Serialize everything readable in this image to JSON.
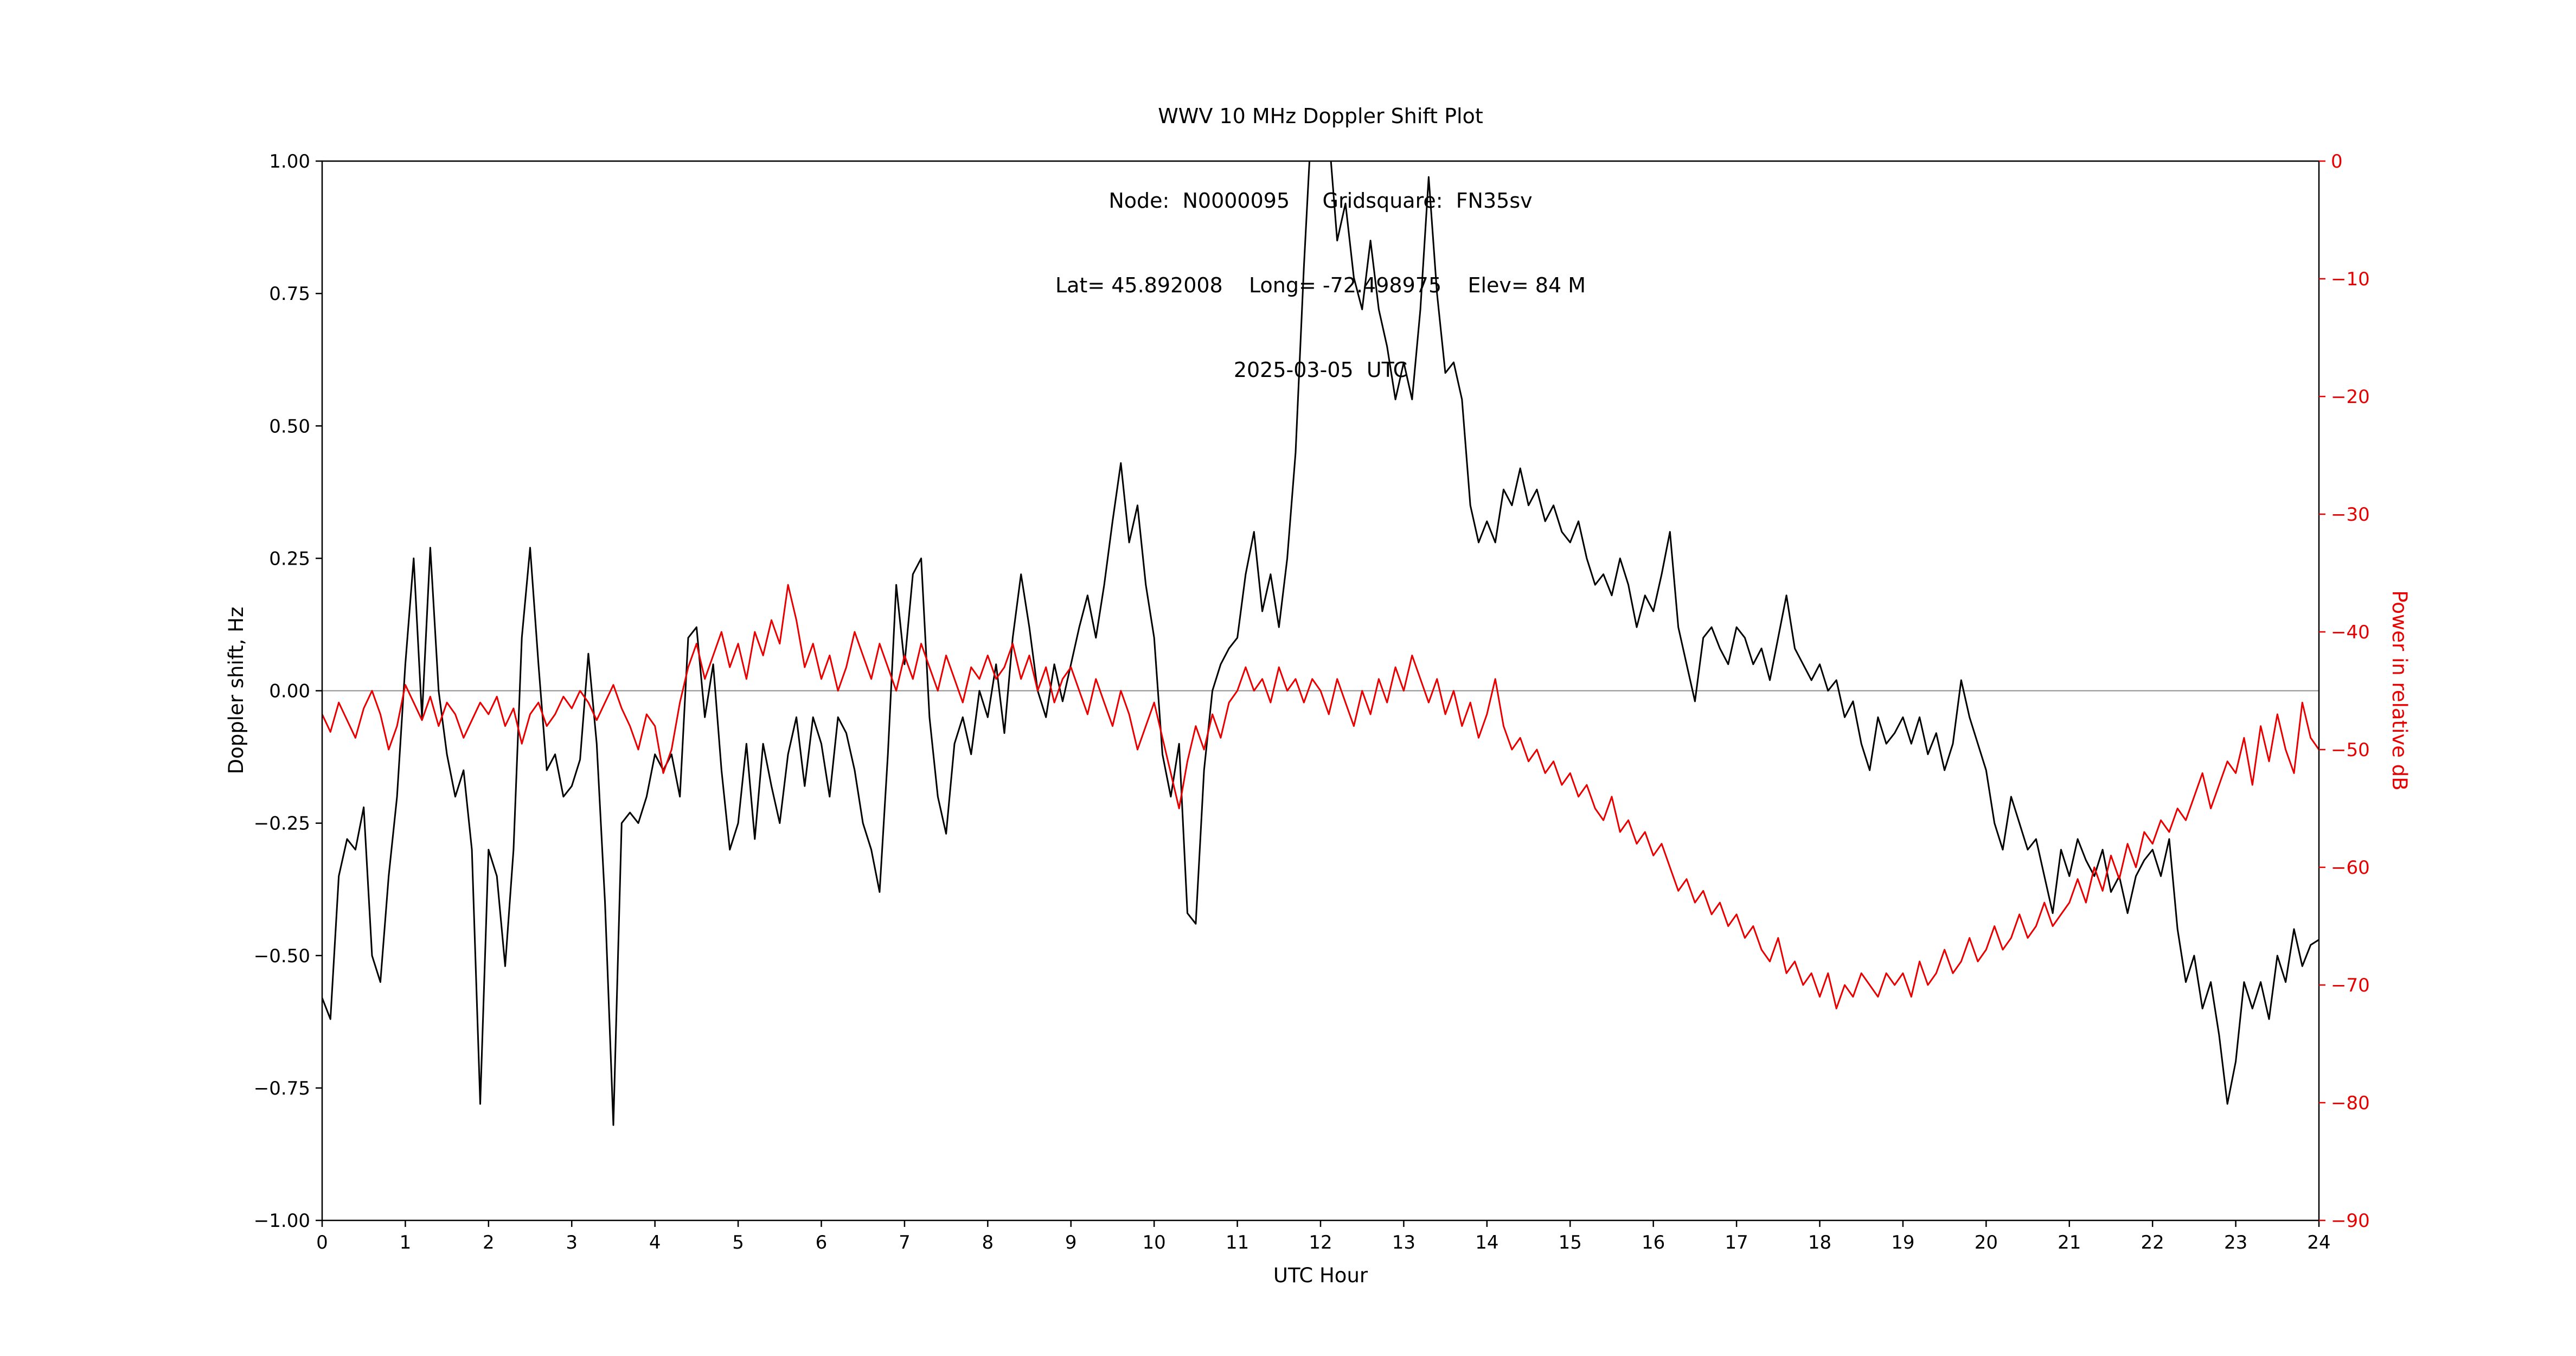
{
  "title": {
    "line1": "WWV 10 MHz Doppler Shift Plot",
    "line2": "Node:  N0000095     Gridsquare:  FN35sv",
    "line3": "Lat= 45.892008    Long= -72.498975    Elev= 84 M",
    "line4": "2025-03-05  UTC"
  },
  "chart_data": {
    "type": "line",
    "title": "WWV 10 MHz Doppler Shift Plot",
    "subtitle": "Node: N0000095  Gridsquare: FN35sv  Lat= 45.892008  Long= -72.498975  Elev= 84 M  2025-03-05 UTC",
    "xlabel": "UTC Hour",
    "ylabel_left": "Doppler shift, Hz",
    "ylabel_right": "Power in relative dB",
    "xlim": [
      0,
      24
    ],
    "ylim_left": [
      -1.0,
      1.0
    ],
    "ylim_right": [
      -90,
      0
    ],
    "grid": false,
    "legend": "none",
    "zero_reference_line_y": 0.0,
    "xticks": {
      "values": [
        0,
        1,
        2,
        3,
        4,
        5,
        6,
        7,
        8,
        9,
        10,
        11,
        12,
        13,
        14,
        15,
        16,
        17,
        18,
        19,
        20,
        21,
        22,
        23,
        24
      ],
      "labels": [
        "0",
        "1",
        "2",
        "3",
        "4",
        "5",
        "6",
        "7",
        "8",
        "9",
        "10",
        "11",
        "12",
        "13",
        "14",
        "15",
        "16",
        "17",
        "18",
        "19",
        "20",
        "21",
        "22",
        "23",
        "24"
      ]
    },
    "yticks_left": {
      "values": [
        1.0,
        0.75,
        0.5,
        0.25,
        0.0,
        -0.25,
        -0.5,
        -0.75,
        -1.0
      ],
      "labels": [
        "1.00",
        "0.75",
        "0.50",
        "0.25",
        "0.00",
        "−0.25",
        "−0.50",
        "−0.75",
        "−1.00"
      ]
    },
    "yticks_right": {
      "values": [
        0,
        -10,
        -20,
        -30,
        -40,
        -50,
        -60,
        -70,
        -80,
        -90
      ],
      "labels": [
        "0",
        "−10",
        "−20",
        "−30",
        "−40",
        "−50",
        "−60",
        "−70",
        "−80",
        "−90"
      ]
    },
    "colors": {
      "doppler_line": "#000000",
      "power_line": "#e80000",
      "zero_line": "#8c8c8c",
      "frame": "#000000",
      "right_axis_text": "#e80000"
    },
    "x_step_hours": 0.1,
    "series": [
      {
        "name": "doppler_shift_hz",
        "axis": "left",
        "color": "#000000",
        "values": [
          -0.58,
          -0.62,
          -0.35,
          -0.28,
          -0.3,
          -0.22,
          -0.5,
          -0.55,
          -0.35,
          -0.2,
          0.05,
          0.25,
          -0.05,
          0.27,
          0.0,
          -0.12,
          -0.2,
          -0.15,
          -0.3,
          -0.78,
          -0.3,
          -0.35,
          -0.52,
          -0.3,
          0.1,
          0.27,
          0.05,
          -0.15,
          -0.12,
          -0.2,
          -0.18,
          -0.13,
          0.07,
          -0.1,
          -0.4,
          -0.82,
          -0.25,
          -0.23,
          -0.25,
          -0.2,
          -0.12,
          -0.15,
          -0.12,
          -0.2,
          0.1,
          0.12,
          -0.05,
          0.05,
          -0.15,
          -0.3,
          -0.25,
          -0.1,
          -0.28,
          -0.1,
          -0.18,
          -0.25,
          -0.12,
          -0.05,
          -0.18,
          -0.05,
          -0.1,
          -0.2,
          -0.05,
          -0.08,
          -0.15,
          -0.25,
          -0.3,
          -0.38,
          -0.12,
          0.2,
          0.05,
          0.22,
          0.25,
          -0.05,
          -0.2,
          -0.27,
          -0.1,
          -0.05,
          -0.12,
          0.0,
          -0.05,
          0.05,
          -0.08,
          0.1,
          0.22,
          0.12,
          0.0,
          -0.05,
          0.05,
          -0.02,
          0.05,
          0.12,
          0.18,
          0.1,
          0.2,
          0.32,
          0.43,
          0.28,
          0.35,
          0.2,
          0.1,
          -0.12,
          -0.2,
          -0.1,
          -0.42,
          -0.44,
          -0.15,
          0.0,
          0.05,
          0.08,
          0.1,
          0.22,
          0.3,
          0.15,
          0.22,
          0.12,
          0.25,
          0.45,
          0.8,
          1.1,
          1.2,
          1.05,
          0.85,
          0.92,
          0.78,
          0.72,
          0.85,
          0.72,
          0.65,
          0.55,
          0.62,
          0.55,
          0.72,
          0.97,
          0.75,
          0.6,
          0.62,
          0.55,
          0.35,
          0.28,
          0.32,
          0.28,
          0.38,
          0.35,
          0.42,
          0.35,
          0.38,
          0.32,
          0.35,
          0.3,
          0.28,
          0.32,
          0.25,
          0.2,
          0.22,
          0.18,
          0.25,
          0.2,
          0.12,
          0.18,
          0.15,
          0.22,
          0.3,
          0.12,
          0.05,
          -0.02,
          0.1,
          0.12,
          0.08,
          0.05,
          0.12,
          0.1,
          0.05,
          0.08,
          0.02,
          0.1,
          0.18,
          0.08,
          0.05,
          0.02,
          0.05,
          0.0,
          0.02,
          -0.05,
          -0.02,
          -0.1,
          -0.15,
          -0.05,
          -0.1,
          -0.08,
          -0.05,
          -0.1,
          -0.05,
          -0.12,
          -0.08,
          -0.15,
          -0.1,
          0.02,
          -0.05,
          -0.1,
          -0.15,
          -0.25,
          -0.3,
          -0.2,
          -0.25,
          -0.3,
          -0.28,
          -0.35,
          -0.42,
          -0.3,
          -0.35,
          -0.28,
          -0.32,
          -0.35,
          -0.3,
          -0.38,
          -0.35,
          -0.42,
          -0.35,
          -0.32,
          -0.3,
          -0.35,
          -0.28,
          -0.45,
          -0.55,
          -0.5,
          -0.6,
          -0.55,
          -0.65,
          -0.78,
          -0.7,
          -0.55,
          -0.6,
          -0.55,
          -0.62,
          -0.5,
          -0.55,
          -0.45,
          -0.52,
          -0.48,
          -0.47
        ]
      },
      {
        "name": "power_relative_db",
        "axis": "right",
        "color": "#e80000",
        "values": [
          -47,
          -48.5,
          -46,
          -47.5,
          -49,
          -46.5,
          -45,
          -47,
          -50,
          -48,
          -44.5,
          -46,
          -47.5,
          -45.5,
          -48,
          -46,
          -47,
          -49,
          -47.5,
          -46,
          -47,
          -45.5,
          -48,
          -46.5,
          -49.5,
          -47,
          -46,
          -48,
          -47,
          -45.5,
          -46.5,
          -45,
          -46,
          -47.5,
          -46,
          -44.5,
          -46.5,
          -48,
          -50,
          -47,
          -48,
          -52,
          -50,
          -46,
          -43,
          -41,
          -44,
          -42,
          -40,
          -43,
          -41,
          -44,
          -40,
          -42,
          -39,
          -41,
          -36,
          -39,
          -43,
          -41,
          -44,
          -42,
          -45,
          -43,
          -40,
          -42,
          -44,
          -41,
          -43,
          -45,
          -42,
          -44,
          -41,
          -43,
          -45,
          -42,
          -44,
          -46,
          -43,
          -44,
          -42,
          -44,
          -43,
          -41,
          -44,
          -42,
          -45,
          -43,
          -46,
          -44,
          -43,
          -45,
          -47,
          -44,
          -46,
          -48,
          -45,
          -47,
          -50,
          -48,
          -46,
          -49,
          -52,
          -55,
          -51,
          -48,
          -50,
          -47,
          -49,
          -46,
          -45,
          -43,
          -45,
          -44,
          -46,
          -43,
          -45,
          -44,
          -46,
          -44,
          -45,
          -47,
          -44,
          -46,
          -48,
          -45,
          -47,
          -44,
          -46,
          -43,
          -45,
          -42,
          -44,
          -46,
          -44,
          -47,
          -45,
          -48,
          -46,
          -49,
          -47,
          -44,
          -48,
          -50,
          -49,
          -51,
          -50,
          -52,
          -51,
          -53,
          -52,
          -54,
          -53,
          -55,
          -56,
          -54,
          -57,
          -56,
          -58,
          -57,
          -59,
          -58,
          -60,
          -62,
          -61,
          -63,
          -62,
          -64,
          -63,
          -65,
          -64,
          -66,
          -65,
          -67,
          -68,
          -66,
          -69,
          -68,
          -70,
          -69,
          -71,
          -69,
          -72,
          -70,
          -71,
          -69,
          -70,
          -71,
          -69,
          -70,
          -69,
          -71,
          -68,
          -70,
          -69,
          -67,
          -69,
          -68,
          -66,
          -68,
          -67,
          -65,
          -67,
          -66,
          -64,
          -66,
          -65,
          -63,
          -65,
          -64,
          -63,
          -61,
          -63,
          -60,
          -62,
          -59,
          -61,
          -58,
          -60,
          -57,
          -58,
          -56,
          -57,
          -55,
          -56,
          -54,
          -52,
          -55,
          -53,
          -51,
          -52,
          -49,
          -53,
          -48,
          -51,
          -47,
          -50,
          -52,
          -46,
          -49,
          -50
        ]
      }
    ]
  }
}
